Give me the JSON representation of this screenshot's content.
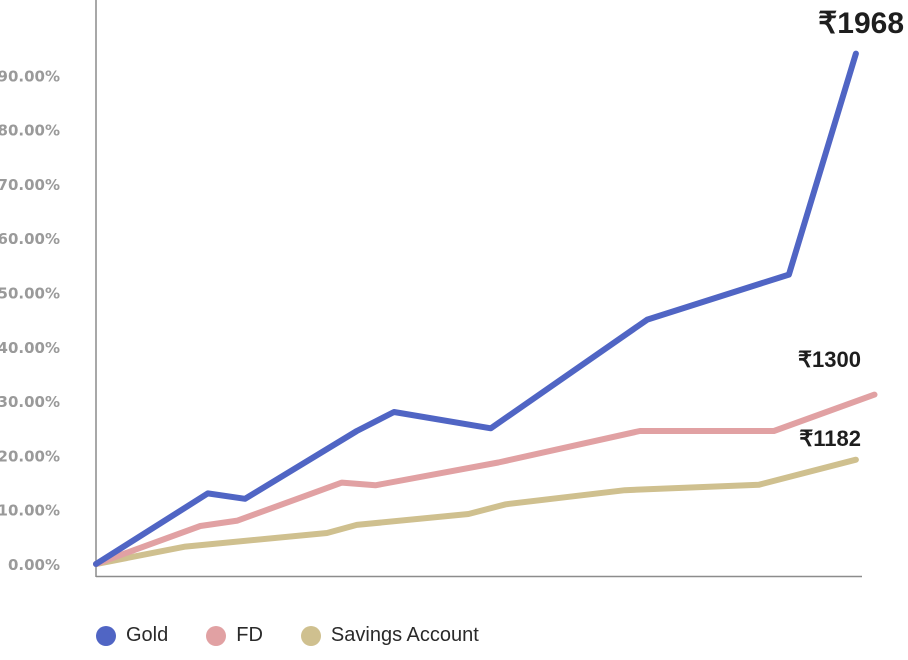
{
  "chart_data": {
    "type": "line",
    "x": [
      0,
      1,
      1.3,
      2.9,
      3.5,
      6.1,
      6.7,
      7.6,
      9.4,
      12.6,
      14.1
    ],
    "ylim": [
      0,
      90
    ],
    "y_ticks": [
      "0.00%",
      "10.00%",
      "20.00%",
      "30.00%",
      "40.00%",
      "50.00%",
      "60.00%",
      "70.00%",
      "80.00%",
      "90.00%"
    ],
    "grid": false,
    "legend_position": "bottom-left",
    "series": [
      {
        "name": "Gold",
        "color": "#5065c4",
        "points": [
          [
            0,
            0
          ],
          [
            1.5,
            13
          ],
          [
            2,
            12
          ],
          [
            3.5,
            24.5
          ],
          [
            4,
            28
          ],
          [
            5.3,
            25
          ],
          [
            7.4,
            45
          ],
          [
            9.3,
            53.3
          ],
          [
            10.2,
            94
          ]
        ],
        "end_label": "₹1968"
      },
      {
        "name": "FD",
        "color": "#e1a1a3",
        "points": [
          [
            0,
            0
          ],
          [
            1.4,
            7
          ],
          [
            1.9,
            8
          ],
          [
            3.3,
            15
          ],
          [
            3.75,
            14.5
          ],
          [
            5.4,
            18.7
          ],
          [
            7.3,
            24.5
          ],
          [
            9.1,
            24.5
          ],
          [
            10.45,
            31.2
          ]
        ],
        "end_label": "₹1300"
      },
      {
        "name": "Savings Account",
        "color": "#cfc08f",
        "points": [
          [
            0,
            0
          ],
          [
            1.2,
            3.2
          ],
          [
            3.1,
            5.7
          ],
          [
            3.5,
            7.2
          ],
          [
            5,
            9.2
          ],
          [
            5.5,
            11
          ],
          [
            7.1,
            13.6
          ],
          [
            8.9,
            14.6
          ],
          [
            10.2,
            19.2
          ]
        ],
        "end_label": "₹1182"
      }
    ]
  },
  "legend": [
    {
      "label": "Gold",
      "color": "#5065c4"
    },
    {
      "label": "FD",
      "color": "#e1a1a3"
    },
    {
      "label": "Savings Account",
      "color": "#cfc08f"
    }
  ]
}
